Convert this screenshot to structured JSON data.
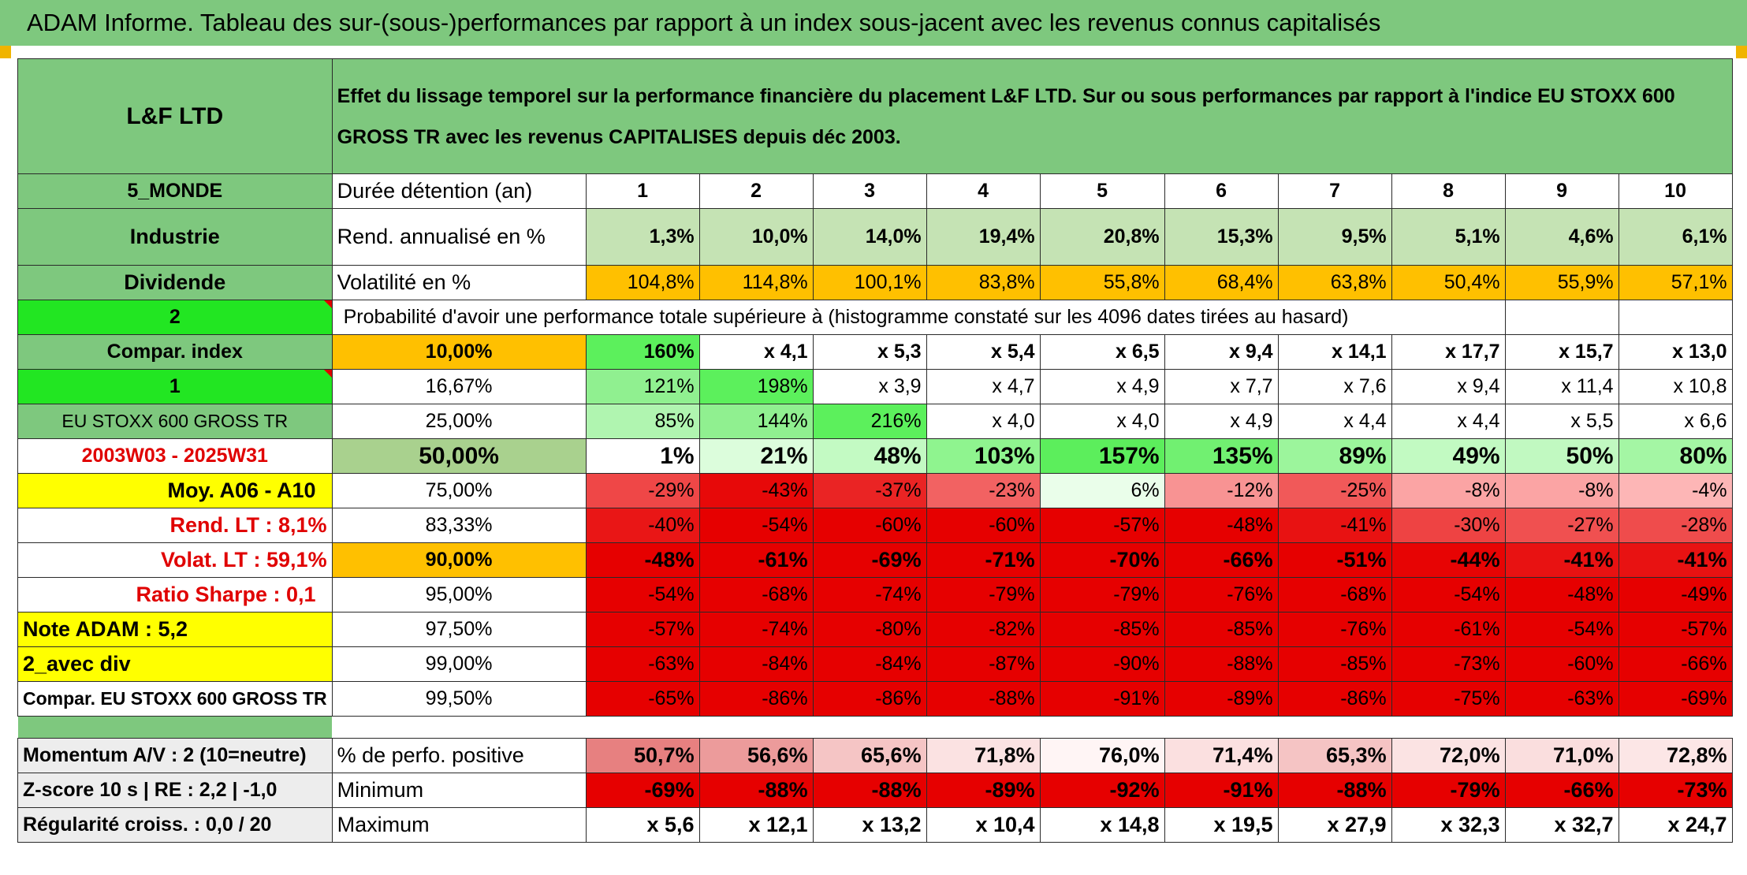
{
  "title": "ADAM Informe. Tableau des sur-(sous-)performances par rapport à un index sous-jacent avec les revenus connus capitalisés",
  "header": {
    "fund_name": "L&F LTD",
    "description": "Effet du lissage temporel sur la performance financière du placement L&F LTD. Sur ou sous performances par rapport à l'indice EU STOXX 600 GROSS TR avec les revenus CAPITALISES depuis déc 2003."
  },
  "left": {
    "zone": "5_MONDE",
    "sector": "Industrie",
    "type": "Dividende",
    "num_a": "2",
    "compar_index": "Compar. index",
    "num_b": "1",
    "index_name": "EU STOXX 600 GROSS TR",
    "period": "2003W03 - 2025W31",
    "moy": "Moy. A06 - A10",
    "rend_lt": "Rend. LT :   8,1%",
    "volat_lt": "Volat. LT :   59,1%",
    "sharpe": "Ratio Sharpe :    0,1",
    "note": "Note ADAM : 5,2",
    "avec_div": "2_avec div",
    "compar_full": "Compar. EU STOXX 600 GROSS TR",
    "momentum": "Momentum A/V : 2 (10=neutre)",
    "zscore": "Z-score 10 s | RE : 2,2 | -1,0",
    "regularite": "Régularité croiss. : 0,0 / 20"
  },
  "labels": {
    "duree": "Durée détention (an)",
    "rend": "Rend. annualisé en %",
    "volat": "Volatilité en %",
    "proba": "Probabilité d'avoir une performance totale supérieure à (histogramme constaté sur les 4096 dates tirées au hasard)",
    "pos": "% de perfo. positive",
    "min": "Minimum",
    "max": "Maximum"
  },
  "years": [
    "1",
    "2",
    "3",
    "4",
    "5",
    "6",
    "7",
    "8",
    "9",
    "10"
  ],
  "rend": [
    "1,3%",
    "10,0%",
    "14,0%",
    "19,4%",
    "20,8%",
    "15,3%",
    "9,5%",
    "5,1%",
    "4,6%",
    "6,1%"
  ],
  "volat": [
    "104,8%",
    "114,8%",
    "100,1%",
    "83,8%",
    "55,8%",
    "68,4%",
    "63,8%",
    "50,4%",
    "55,9%",
    "57,1%"
  ],
  "quantiles": [
    {
      "q": "10,00%",
      "v": [
        "160%",
        "x 4,1",
        "x 5,3",
        "x 5,4",
        "x 6,5",
        "x 9,4",
        "x 14,1",
        "x 17,7",
        "x 15,7",
        "x 13,0"
      ]
    },
    {
      "q": "16,67%",
      "v": [
        "121%",
        "198%",
        "x 3,9",
        "x 4,7",
        "x 4,9",
        "x 7,7",
        "x 7,6",
        "x 9,4",
        "x 11,4",
        "x 10,8"
      ]
    },
    {
      "q": "25,00%",
      "v": [
        "85%",
        "144%",
        "216%",
        "x 4,0",
        "x 4,0",
        "x 4,9",
        "x 4,4",
        "x 4,4",
        "x 5,5",
        "x 6,6"
      ]
    },
    {
      "q": "50,00%",
      "v": [
        "1%",
        "21%",
        "48%",
        "103%",
        "157%",
        "135%",
        "89%",
        "49%",
        "50%",
        "80%"
      ]
    },
    {
      "q": "75,00%",
      "v": [
        "-29%",
        "-43%",
        "-37%",
        "-23%",
        "6%",
        "-12%",
        "-25%",
        "-8%",
        "-8%",
        "-4%"
      ]
    },
    {
      "q": "83,33%",
      "v": [
        "-40%",
        "-54%",
        "-60%",
        "-60%",
        "-57%",
        "-48%",
        "-41%",
        "-30%",
        "-27%",
        "-28%"
      ]
    },
    {
      "q": "90,00%",
      "v": [
        "-48%",
        "-61%",
        "-69%",
        "-71%",
        "-70%",
        "-66%",
        "-51%",
        "-44%",
        "-41%",
        "-41%"
      ]
    },
    {
      "q": "95,00%",
      "v": [
        "-54%",
        "-68%",
        "-74%",
        "-79%",
        "-79%",
        "-76%",
        "-68%",
        "-54%",
        "-48%",
        "-49%"
      ]
    },
    {
      "q": "97,50%",
      "v": [
        "-57%",
        "-74%",
        "-80%",
        "-82%",
        "-85%",
        "-85%",
        "-76%",
        "-61%",
        "-54%",
        "-57%"
      ]
    },
    {
      "q": "99,00%",
      "v": [
        "-63%",
        "-84%",
        "-84%",
        "-87%",
        "-90%",
        "-88%",
        "-85%",
        "-73%",
        "-60%",
        "-66%"
      ]
    },
    {
      "q": "99,50%",
      "v": [
        "-65%",
        "-86%",
        "-86%",
        "-88%",
        "-91%",
        "-89%",
        "-86%",
        "-75%",
        "-63%",
        "-69%"
      ]
    }
  ],
  "pos": [
    "50,7%",
    "56,6%",
    "65,6%",
    "71,8%",
    "76,0%",
    "71,4%",
    "65,3%",
    "72,0%",
    "71,0%",
    "72,8%"
  ],
  "min": [
    "-69%",
    "-88%",
    "-88%",
    "-89%",
    "-92%",
    "-91%",
    "-88%",
    "-79%",
    "-66%",
    "-73%"
  ],
  "max": [
    "x 5,6",
    "x 12,1",
    "x 13,2",
    "x 10,4",
    "x 14,8",
    "x 19,5",
    "x 27,9",
    "x 32,3",
    "x 32,7",
    "x 24,7"
  ],
  "colors": {
    "header_green": "#7ec87e",
    "light_green": "#c5e3b4",
    "bright_green": "#22e622",
    "orange": "#ffc000",
    "yellow": "#ffff00",
    "red_text": "#e00000"
  }
}
